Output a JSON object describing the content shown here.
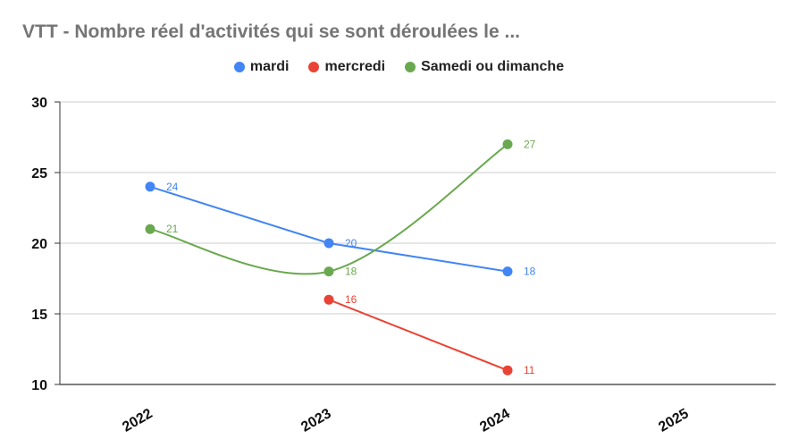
{
  "chart_data": {
    "type": "line",
    "title": "VTT - Nombre réel d'activités qui se sont déroulées le ...",
    "xlabel": "",
    "ylabel": "",
    "x": [
      "2022",
      "2023",
      "2024",
      "2025"
    ],
    "ylim": [
      10,
      30
    ],
    "yticks": [
      10,
      15,
      20,
      25,
      30
    ],
    "grid": true,
    "legend": "top",
    "series": [
      {
        "name": "mardi",
        "color": "#4285f4",
        "values": [
          24,
          20,
          18,
          null
        ],
        "smooth": false
      },
      {
        "name": "mercredi",
        "color": "#ea4335",
        "values": [
          null,
          16,
          11,
          null
        ],
        "smooth": false
      },
      {
        "name": "Samedi ou dimanche",
        "color": "#6aa84f",
        "values": [
          21,
          18,
          27,
          null
        ],
        "smooth": true
      }
    ]
  }
}
